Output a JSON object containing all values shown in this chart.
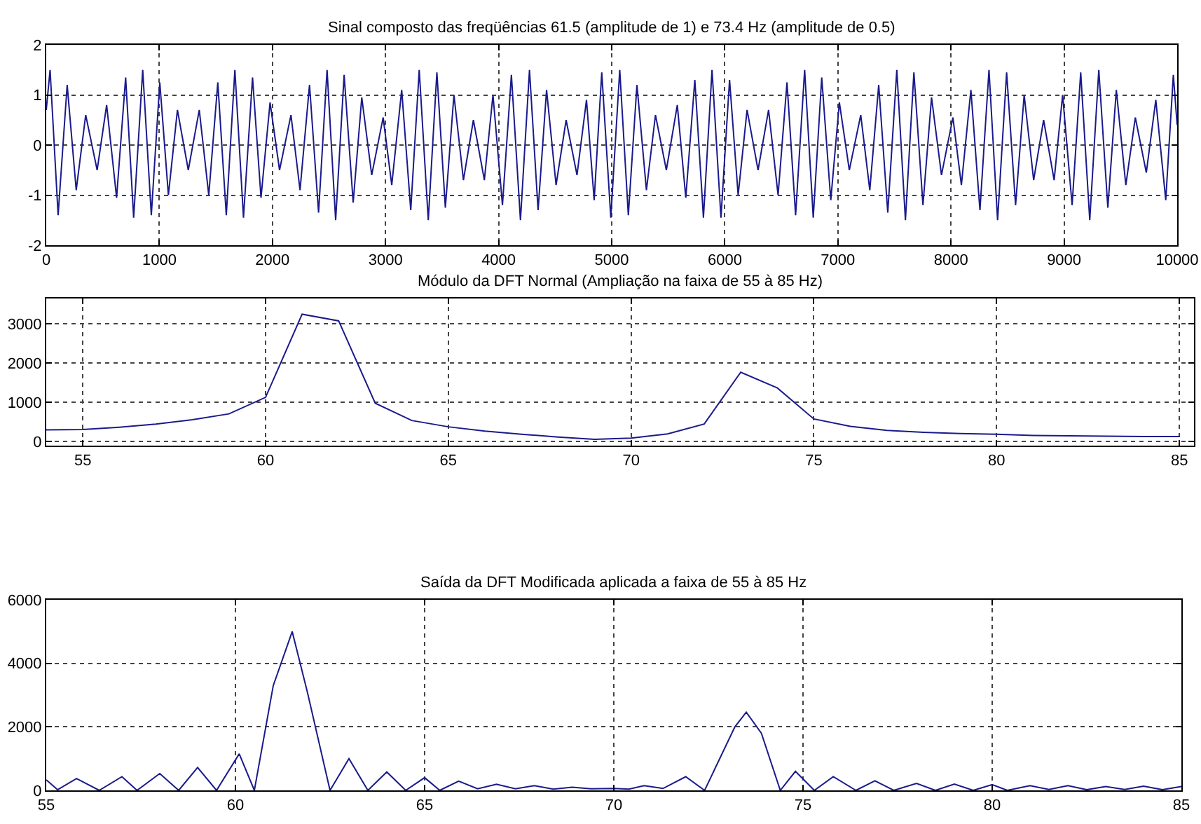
{
  "chart_data": [
    {
      "type": "line",
      "title": "Sinal composto das freqüências 61.5 (amplitude de 1) e 73.4 Hz (amplitude de 0.5)",
      "grid": true,
      "xlim": [
        0,
        10000
      ],
      "xticks": [
        0,
        1000,
        2000,
        3000,
        4000,
        5000,
        6000,
        7000,
        8000,
        9000,
        10000
      ],
      "ylim": [
        -2,
        2
      ],
      "yticks": [
        -2,
        -1,
        0,
        1,
        2
      ],
      "x": [
        0,
        34,
        105,
        185,
        265,
        349,
        450,
        534,
        622,
        702,
        773,
        853,
        929,
        1004,
        1080,
        1160,
        1256,
        1353,
        1437,
        1517,
        1592,
        1668,
        1744,
        1824,
        1899,
        1979,
        2063,
        2164,
        2244,
        2328,
        2408,
        2483,
        2559,
        2634,
        2714,
        2790,
        2878,
        2979,
        3055,
        3143,
        3223,
        3298,
        3378,
        3454,
        3529,
        3605,
        3689,
        3777,
        3874,
        3950,
        4034,
        4113,
        4193,
        4273,
        4349,
        4424,
        4508,
        4597,
        4693,
        4777,
        4845,
        4912,
        4992,
        5071,
        5147,
        5223,
        5307,
        5387,
        5483,
        5580,
        5655,
        5735,
        5811,
        5887,
        5966,
        6042,
        6118,
        6197,
        6294,
        6387,
        6471,
        6550,
        6626,
        6706,
        6782,
        6857,
        6937,
        7013,
        7101,
        7202,
        7282,
        7361,
        7441,
        7521,
        7597,
        7672,
        7752,
        7828,
        7916,
        8017,
        8092,
        8176,
        8256,
        8336,
        8412,
        8492,
        8571,
        8647,
        8731,
        8819,
        8912,
        8987,
        9071,
        9147,
        9227,
        9307,
        9387,
        9462,
        9546,
        9630,
        9727,
        9811,
        9899,
        9966,
        10000
      ],
      "series": [
        {
          "color": "#1a1a8c",
          "values": [
            0.7,
            1.5,
            -1.4,
            1.2,
            -0.9,
            0.6,
            -0.5,
            0.8,
            -1.05,
            1.35,
            -1.45,
            1.5,
            -1.4,
            1.25,
            -1.0,
            0.7,
            -0.5,
            0.7,
            -1.0,
            1.25,
            -1.4,
            1.5,
            -1.45,
            1.35,
            -1.05,
            0.85,
            -0.5,
            0.6,
            -0.9,
            1.2,
            -1.35,
            1.5,
            -1.5,
            1.4,
            -1.15,
            0.95,
            -0.6,
            0.55,
            -0.8,
            1.1,
            -1.3,
            1.5,
            -1.5,
            1.45,
            -1.25,
            1.0,
            -0.7,
            0.5,
            -0.7,
            1.0,
            -1.2,
            1.4,
            -1.5,
            1.5,
            -1.3,
            1.1,
            -0.8,
            0.5,
            -0.6,
            0.9,
            -1.1,
            1.45,
            -1.45,
            1.5,
            -1.4,
            1.2,
            -0.9,
            0.6,
            -0.5,
            0.8,
            -1.05,
            1.3,
            -1.45,
            1.5,
            -1.45,
            1.3,
            -1.0,
            0.7,
            -0.5,
            0.7,
            -1.0,
            1.25,
            -1.4,
            1.5,
            -1.45,
            1.35,
            -1.1,
            0.85,
            -0.5,
            0.6,
            -0.9,
            1.2,
            -1.35,
            1.5,
            -1.5,
            1.45,
            -1.2,
            0.95,
            -0.6,
            0.55,
            -0.8,
            1.1,
            -1.3,
            1.5,
            -1.5,
            1.45,
            -1.2,
            1.0,
            -0.7,
            0.5,
            -0.7,
            1.0,
            -1.2,
            1.45,
            -1.5,
            1.5,
            -1.25,
            1.1,
            -0.8,
            0.55,
            -0.55,
            0.9,
            -1.1,
            1.4,
            0.4
          ]
        }
      ]
    },
    {
      "type": "line",
      "title": "Módulo da DFT Normal (Ampliação na faixa de 55 à 85 Hz)",
      "grid": true,
      "xlim": [
        54,
        85.4
      ],
      "xticks": [
        55,
        60,
        65,
        70,
        75,
        80,
        85
      ],
      "ylim": [
        -100,
        3650
      ],
      "yticks": [
        0,
        1000,
        2000,
        3000
      ],
      "x": [
        54,
        55,
        56,
        57,
        58,
        59,
        60,
        61,
        62,
        63,
        64,
        65,
        66,
        67,
        68,
        69,
        70,
        71,
        72,
        73,
        74,
        75,
        76,
        77,
        78,
        79,
        80,
        81,
        82,
        83,
        84,
        85
      ],
      "series": [
        {
          "color": "#1a1a8c",
          "values": [
            300,
            310,
            370,
            450,
            560,
            710,
            1130,
            3250,
            3080,
            980,
            540,
            380,
            270,
            190,
            120,
            60,
            90,
            200,
            450,
            1770,
            1370,
            580,
            390,
            290,
            240,
            210,
            190,
            160,
            150,
            140,
            130,
            130
          ]
        }
      ]
    },
    {
      "type": "line",
      "title": "Saída da DFT Modificada aplicada a faixa de 55 à 85 Hz",
      "grid": true,
      "xlim": [
        55,
        85
      ],
      "xticks": [
        55,
        60,
        65,
        70,
        75,
        80,
        85
      ],
      "ylim": [
        0,
        6000
      ],
      "yticks": [
        0,
        2000,
        4000,
        6000
      ],
      "x": [
        55,
        55.3,
        55.8,
        56.4,
        57,
        57.4,
        58,
        58.5,
        59,
        59.5,
        60.1,
        60.5,
        61.0,
        61.5,
        61.9,
        62.5,
        63.0,
        63.5,
        64.0,
        64.5,
        65.0,
        65.4,
        65.9,
        66.4,
        66.9,
        67.4,
        67.9,
        68.4,
        68.9,
        69.4,
        70.0,
        70.4,
        70.8,
        71.3,
        71.9,
        72.4,
        73.2,
        73.5,
        73.9,
        74.4,
        74.8,
        75.3,
        75.8,
        76.4,
        76.9,
        77.4,
        78.0,
        78.5,
        79.0,
        79.5,
        80.0,
        80.4,
        81.0,
        81.5,
        82.0,
        82.5,
        83.0,
        83.5,
        84.0,
        84.5,
        85.0
      ],
      "series": [
        {
          "color": "#1a1a8c",
          "values": [
            330,
            20,
            370,
            0,
            430,
            0,
            530,
            0,
            720,
            0,
            1150,
            0,
            3300,
            5000,
            3100,
            0,
            1000,
            0,
            580,
            0,
            400,
            0,
            290,
            50,
            190,
            50,
            150,
            40,
            100,
            50,
            60,
            40,
            150,
            60,
            430,
            0,
            2000,
            2460,
            1800,
            0,
            600,
            0,
            430,
            0,
            300,
            0,
            220,
            0,
            200,
            0,
            180,
            0,
            150,
            30,
            150,
            20,
            120,
            30,
            130,
            20,
            120
          ]
        }
      ]
    }
  ]
}
